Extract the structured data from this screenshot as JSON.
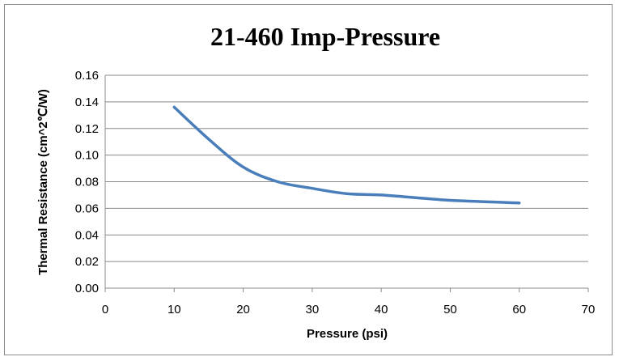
{
  "chart_data": {
    "type": "line",
    "title": "21-460 Imp-Pressure",
    "xlabel": "Pressure (psi)",
    "ylabel": "Thermal Resistance (cm^2℃/W)",
    "xlim": [
      0,
      70
    ],
    "ylim": [
      0,
      0.16
    ],
    "x_ticks": [
      "0",
      "10",
      "20",
      "30",
      "40",
      "50",
      "60",
      "70"
    ],
    "y_ticks": [
      "0.00",
      "0.02",
      "0.04",
      "0.06",
      "0.08",
      "0.10",
      "0.12",
      "0.14",
      "0.16"
    ],
    "grid": "horizontal",
    "legend": "none",
    "series": [
      {
        "color": "#4a7ebb",
        "x": [
          10,
          15,
          20,
          25,
          30,
          35,
          40,
          45,
          50,
          55,
          60
        ],
        "y": [
          0.136,
          0.112,
          0.091,
          0.08,
          0.075,
          0.071,
          0.07,
          0.068,
          0.066,
          0.065,
          0.064
        ]
      }
    ]
  }
}
